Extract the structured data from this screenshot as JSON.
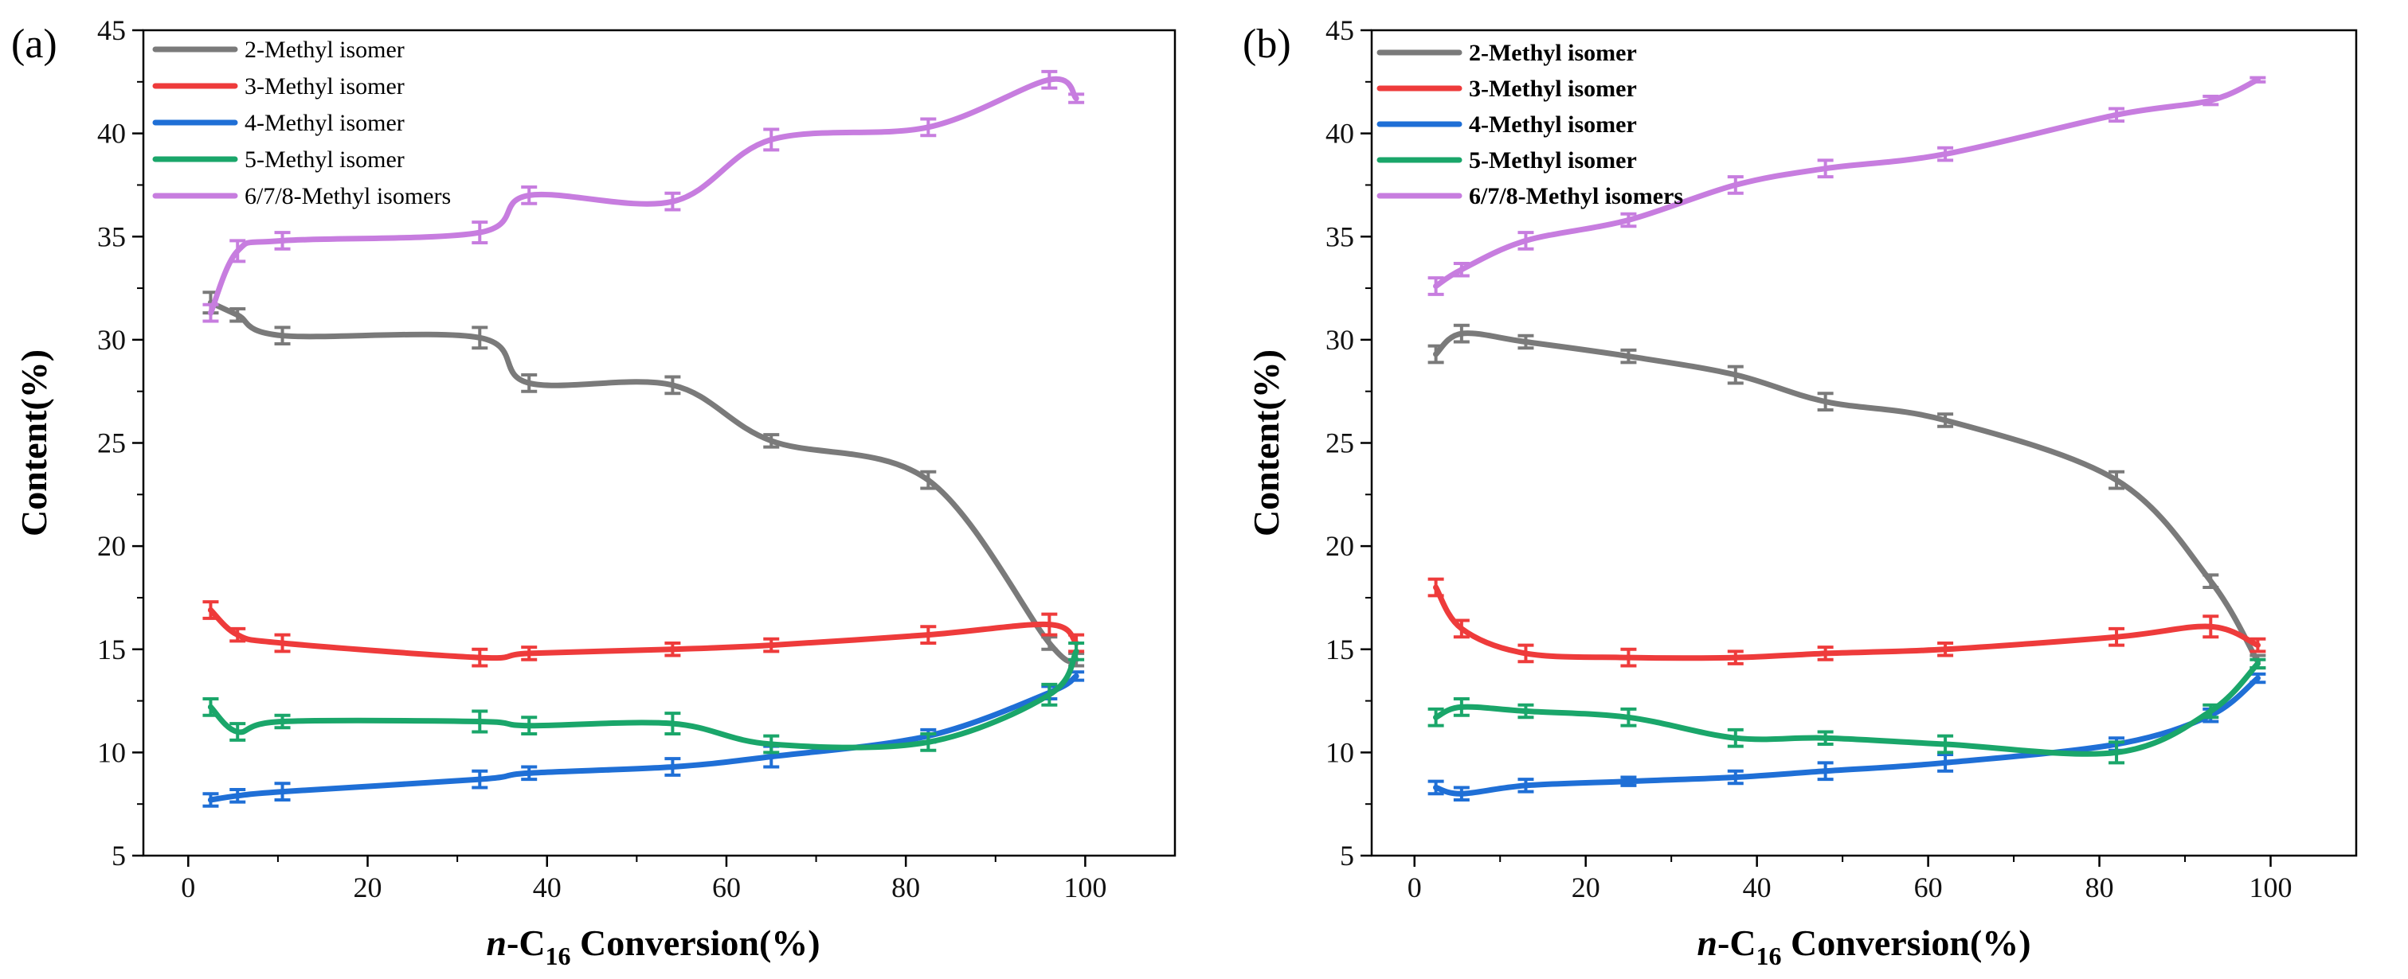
{
  "chart_data": [
    {
      "panel_label": "(a)",
      "type": "line",
      "xlabel_prefix": "n",
      "xlabel_sep": "-C",
      "xlabel_sub": "16",
      "xlabel_suffix": " Conversion(%)",
      "ylabel": "Content(%)",
      "xlim": [
        -5,
        110
      ],
      "ylim": [
        5,
        45
      ],
      "xticks": [
        0,
        20,
        40,
        60,
        80,
        100
      ],
      "yticks": [
        5,
        10,
        15,
        20,
        25,
        30,
        35,
        40,
        45
      ],
      "legend_position": "top-left",
      "series": [
        {
          "name": "2-Methyl isomer",
          "color": "#7a7a7a",
          "x": [
            2.5,
            5.5,
            10.5,
            32.5,
            38,
            54,
            65,
            82.5,
            96,
            99
          ],
          "y": [
            31.8,
            31.2,
            30.2,
            30.1,
            27.9,
            27.8,
            25.1,
            23.2,
            15.3,
            14.5
          ],
          "err": [
            0.5,
            0.3,
            0.4,
            0.5,
            0.4,
            0.4,
            0.3,
            0.4,
            0.3,
            0.3
          ]
        },
        {
          "name": "3-Methyl isomer",
          "color": "#ee3b3b",
          "x": [
            2.5,
            5.5,
            10.5,
            32.5,
            38,
            54,
            65,
            82.5,
            96,
            99
          ],
          "y": [
            16.9,
            15.7,
            15.3,
            14.6,
            14.8,
            15.0,
            15.2,
            15.7,
            16.2,
            15.3
          ],
          "err": [
            0.4,
            0.3,
            0.4,
            0.4,
            0.3,
            0.3,
            0.3,
            0.4,
            0.5,
            0.4
          ]
        },
        {
          "name": "4-Methyl isomer",
          "color": "#1f6fd6",
          "x": [
            2.5,
            5.5,
            10.5,
            32.5,
            38,
            54,
            65,
            82.5,
            96,
            99
          ],
          "y": [
            7.7,
            7.9,
            8.1,
            8.7,
            9.0,
            9.3,
            9.8,
            10.8,
            12.9,
            13.7
          ],
          "err": [
            0.3,
            0.3,
            0.4,
            0.4,
            0.3,
            0.4,
            0.5,
            0.3,
            0.3,
            0.2
          ]
        },
        {
          "name": "5-Methyl isomer",
          "color": "#1aa66a",
          "x": [
            2.5,
            5.5,
            10.5,
            32.5,
            38,
            54,
            65,
            82.5,
            96,
            99
          ],
          "y": [
            12.2,
            11.0,
            11.5,
            11.5,
            11.3,
            11.4,
            10.4,
            10.5,
            12.8,
            14.9
          ],
          "err": [
            0.4,
            0.4,
            0.3,
            0.5,
            0.4,
            0.5,
            0.4,
            0.4,
            0.5,
            0.4
          ]
        },
        {
          "name": "6/7/8-Methyl isomers",
          "color": "#c77ddf",
          "x": [
            2.5,
            5.5,
            10.5,
            32.5,
            38,
            54,
            65,
            82.5,
            96,
            99
          ],
          "y": [
            31.3,
            34.3,
            34.8,
            35.2,
            37.0,
            36.7,
            39.7,
            40.3,
            42.6,
            41.7
          ],
          "err": [
            0.4,
            0.5,
            0.4,
            0.5,
            0.4,
            0.4,
            0.5,
            0.4,
            0.4,
            0.2
          ]
        }
      ]
    },
    {
      "panel_label": "(b)",
      "type": "line",
      "xlabel_prefix": "n",
      "xlabel_sep": "-C",
      "xlabel_sub": "16",
      "xlabel_suffix": " Conversion(%)",
      "ylabel": "Content(%)",
      "xlim": [
        -5,
        110
      ],
      "ylim": [
        5,
        45
      ],
      "xticks": [
        0,
        20,
        40,
        60,
        80,
        100
      ],
      "yticks": [
        5,
        10,
        15,
        20,
        25,
        30,
        35,
        40,
        45
      ],
      "legend_position": "top-left",
      "series": [
        {
          "name": "2-Methyl isomer",
          "color": "#7a7a7a",
          "x": [
            2.5,
            5.5,
            13,
            25,
            37.5,
            48,
            62,
            82,
            93,
            98.5
          ],
          "y": [
            29.3,
            30.3,
            29.9,
            29.2,
            28.3,
            27.0,
            26.1,
            23.2,
            18.3,
            14.4
          ],
          "err": [
            0.4,
            0.4,
            0.3,
            0.3,
            0.4,
            0.4,
            0.3,
            0.4,
            0.3,
            0.3
          ]
        },
        {
          "name": "3-Methyl isomer",
          "color": "#ee3b3b",
          "x": [
            2.5,
            5.5,
            13,
            25,
            37.5,
            48,
            62,
            82,
            93,
            98.5
          ],
          "y": [
            18.0,
            16.0,
            14.8,
            14.6,
            14.6,
            14.8,
            15.0,
            15.6,
            16.1,
            15.2
          ],
          "err": [
            0.4,
            0.4,
            0.4,
            0.4,
            0.3,
            0.3,
            0.3,
            0.4,
            0.5,
            0.3
          ]
        },
        {
          "name": "4-Methyl isomer",
          "color": "#1f6fd6",
          "x": [
            2.5,
            5.5,
            13,
            25,
            37.5,
            48,
            62,
            82,
            93,
            98.5
          ],
          "y": [
            8.3,
            8.0,
            8.4,
            8.6,
            8.8,
            9.1,
            9.5,
            10.4,
            11.8,
            13.6
          ],
          "err": [
            0.3,
            0.3,
            0.3,
            0.2,
            0.3,
            0.4,
            0.4,
            0.3,
            0.3,
            0.2
          ]
        },
        {
          "name": "5-Methyl isomer",
          "color": "#1aa66a",
          "x": [
            2.5,
            5.5,
            13,
            25,
            37.5,
            48,
            62,
            82,
            93,
            98.5
          ],
          "y": [
            11.7,
            12.2,
            12.0,
            11.7,
            10.7,
            10.7,
            10.4,
            10.0,
            12.0,
            14.3
          ],
          "err": [
            0.4,
            0.4,
            0.3,
            0.4,
            0.4,
            0.3,
            0.4,
            0.5,
            0.3,
            0.2
          ]
        },
        {
          "name": "6/7/8-Methyl isomers",
          "color": "#c77ddf",
          "x": [
            2.5,
            5.5,
            13,
            25,
            37.5,
            48,
            62,
            82,
            93,
            98.5
          ],
          "y": [
            32.6,
            33.4,
            34.8,
            35.8,
            37.5,
            38.3,
            39.0,
            40.9,
            41.6,
            42.6
          ],
          "err": [
            0.4,
            0.3,
            0.4,
            0.3,
            0.4,
            0.4,
            0.3,
            0.3,
            0.2,
            0.1
          ]
        }
      ]
    }
  ]
}
